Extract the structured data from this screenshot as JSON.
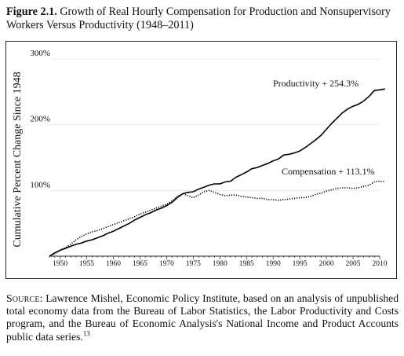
{
  "figure": {
    "label": "Figure 2.1.",
    "title": "Growth of Real Hourly Compensation for Production and Nonsupervisory Workers Versus Productivity (1948–2011)"
  },
  "source": {
    "label": "Source",
    "text": ": Lawrence Mishel, Economic Policy Institute, based on an analysis of unpublished total economy data from the Bureau of Labor Statistics, the Labor Productivity and Costs program, and the Bureau of Economic Analysis's National Income and Product Accounts public data series.",
    "footnote": "13"
  },
  "chart_data": {
    "type": "line",
    "title": "",
    "xlabel": "",
    "ylabel": "Cumulative Percent Change Since 1948",
    "xlim": [
      1948,
      2010
    ],
    "ylim": [
      0,
      300
    ],
    "x_ticks": [
      "1950",
      "1955",
      "1960",
      "1965",
      "1970",
      "1975",
      "1980",
      "1985",
      "1990",
      "1995",
      "2000",
      "2005",
      "2010"
    ],
    "y_ticks": [
      "100%",
      "200%",
      "300%"
    ],
    "grid": "horizontal",
    "legend": "none",
    "series": [
      {
        "name": "Productivity + 254.3%",
        "style": "solid",
        "color": "#000000",
        "points": [
          [
            1948,
            0
          ],
          [
            1949,
            5
          ],
          [
            1950,
            9
          ],
          [
            1951,
            12
          ],
          [
            1952,
            15
          ],
          [
            1953,
            18
          ],
          [
            1954,
            20
          ],
          [
            1955,
            23
          ],
          [
            1956,
            25
          ],
          [
            1957,
            28
          ],
          [
            1958,
            31
          ],
          [
            1959,
            35
          ],
          [
            1960,
            38
          ],
          [
            1961,
            42
          ],
          [
            1962,
            46
          ],
          [
            1963,
            50
          ],
          [
            1964,
            55
          ],
          [
            1965,
            59
          ],
          [
            1966,
            63
          ],
          [
            1967,
            66
          ],
          [
            1968,
            70
          ],
          [
            1969,
            73
          ],
          [
            1970,
            77
          ],
          [
            1971,
            82
          ],
          [
            1972,
            89
          ],
          [
            1973,
            95
          ],
          [
            1974,
            97
          ],
          [
            1975,
            98
          ],
          [
            1976,
            102
          ],
          [
            1977,
            105
          ],
          [
            1978,
            108
          ],
          [
            1979,
            110
          ],
          [
            1980,
            110
          ],
          [
            1981,
            113
          ],
          [
            1982,
            114
          ],
          [
            1983,
            120
          ],
          [
            1984,
            124
          ],
          [
            1985,
            128
          ],
          [
            1986,
            133
          ],
          [
            1987,
            135
          ],
          [
            1988,
            138
          ],
          [
            1989,
            141
          ],
          [
            1990,
            145
          ],
          [
            1991,
            148
          ],
          [
            1992,
            154
          ],
          [
            1993,
            155
          ],
          [
            1994,
            157
          ],
          [
            1995,
            160
          ],
          [
            1996,
            165
          ],
          [
            1997,
            171
          ],
          [
            1998,
            177
          ],
          [
            1999,
            184
          ],
          [
            2000,
            193
          ],
          [
            2001,
            202
          ],
          [
            2002,
            210
          ],
          [
            2003,
            218
          ],
          [
            2004,
            224
          ],
          [
            2005,
            228
          ],
          [
            2006,
            231
          ],
          [
            2007,
            236
          ],
          [
            2008,
            243
          ],
          [
            2009,
            252
          ],
          [
            2010,
            253
          ],
          [
            2011,
            254.3
          ]
        ]
      },
      {
        "name": "Compensation + 113.1%",
        "style": "dotted",
        "color": "#000000",
        "points": [
          [
            1948,
            0
          ],
          [
            1949,
            4
          ],
          [
            1950,
            9
          ],
          [
            1951,
            13
          ],
          [
            1952,
            18
          ],
          [
            1953,
            25
          ],
          [
            1954,
            30
          ],
          [
            1955,
            34
          ],
          [
            1956,
            37
          ],
          [
            1957,
            39
          ],
          [
            1958,
            42
          ],
          [
            1959,
            45
          ],
          [
            1960,
            48
          ],
          [
            1961,
            51
          ],
          [
            1962,
            54
          ],
          [
            1963,
            57
          ],
          [
            1964,
            60
          ],
          [
            1965,
            64
          ],
          [
            1966,
            67
          ],
          [
            1967,
            70
          ],
          [
            1968,
            73
          ],
          [
            1969,
            76
          ],
          [
            1970,
            79
          ],
          [
            1971,
            84
          ],
          [
            1972,
            91
          ],
          [
            1973,
            95
          ],
          [
            1974,
            92
          ],
          [
            1975,
            89
          ],
          [
            1976,
            93
          ],
          [
            1977,
            98
          ],
          [
            1978,
            100
          ],
          [
            1979,
            97
          ],
          [
            1980,
            94
          ],
          [
            1981,
            92
          ],
          [
            1982,
            93
          ],
          [
            1983,
            93
          ],
          [
            1984,
            91
          ],
          [
            1985,
            90
          ],
          [
            1986,
            89
          ],
          [
            1987,
            88
          ],
          [
            1988,
            88
          ],
          [
            1989,
            86
          ],
          [
            1990,
            86
          ],
          [
            1991,
            85
          ],
          [
            1992,
            86
          ],
          [
            1993,
            87
          ],
          [
            1994,
            88
          ],
          [
            1995,
            89
          ],
          [
            1996,
            89
          ],
          [
            1997,
            91
          ],
          [
            1998,
            94
          ],
          [
            1999,
            96
          ],
          [
            2000,
            99
          ],
          [
            2001,
            101
          ],
          [
            2002,
            103
          ],
          [
            2003,
            104
          ],
          [
            2004,
            104
          ],
          [
            2005,
            103
          ],
          [
            2006,
            104
          ],
          [
            2007,
            106
          ],
          [
            2008,
            108
          ],
          [
            2009,
            113
          ],
          [
            2010,
            114
          ],
          [
            2011,
            113.1
          ]
        ]
      }
    ]
  }
}
